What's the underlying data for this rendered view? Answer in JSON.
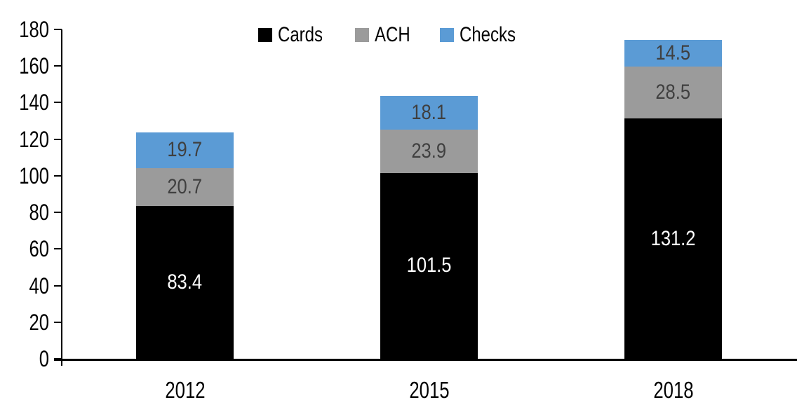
{
  "chart_data": {
    "type": "bar",
    "stacked": true,
    "title": "",
    "xlabel": "",
    "ylabel": "",
    "categories": [
      "2012",
      "2015",
      "2018"
    ],
    "series": [
      {
        "name": "Cards",
        "color": "#000000",
        "label_color": "#ffffff",
        "values": [
          83.4,
          101.5,
          131.2
        ]
      },
      {
        "name": "ACH",
        "color": "#9b9b9b",
        "label_color": "#404040",
        "values": [
          20.7,
          23.9,
          28.5
        ]
      },
      {
        "name": "Checks",
        "color": "#5b9bd5",
        "label_color": "#3f3f3f",
        "values": [
          19.7,
          18.1,
          14.5
        ]
      }
    ],
    "totals": [
      123.8,
      143.5,
      174.2
    ],
    "ylim": [
      0,
      180
    ],
    "ytick_step": 20,
    "ytick_labels": [
      "0",
      "20",
      "40",
      "60",
      "80",
      "100",
      "120",
      "140",
      "160",
      "180"
    ],
    "value_labels": true,
    "value_label_decimals": 1,
    "legend_position": "top",
    "grid": false,
    "background_color": "#ffffff",
    "axis_color": "#000000"
  }
}
